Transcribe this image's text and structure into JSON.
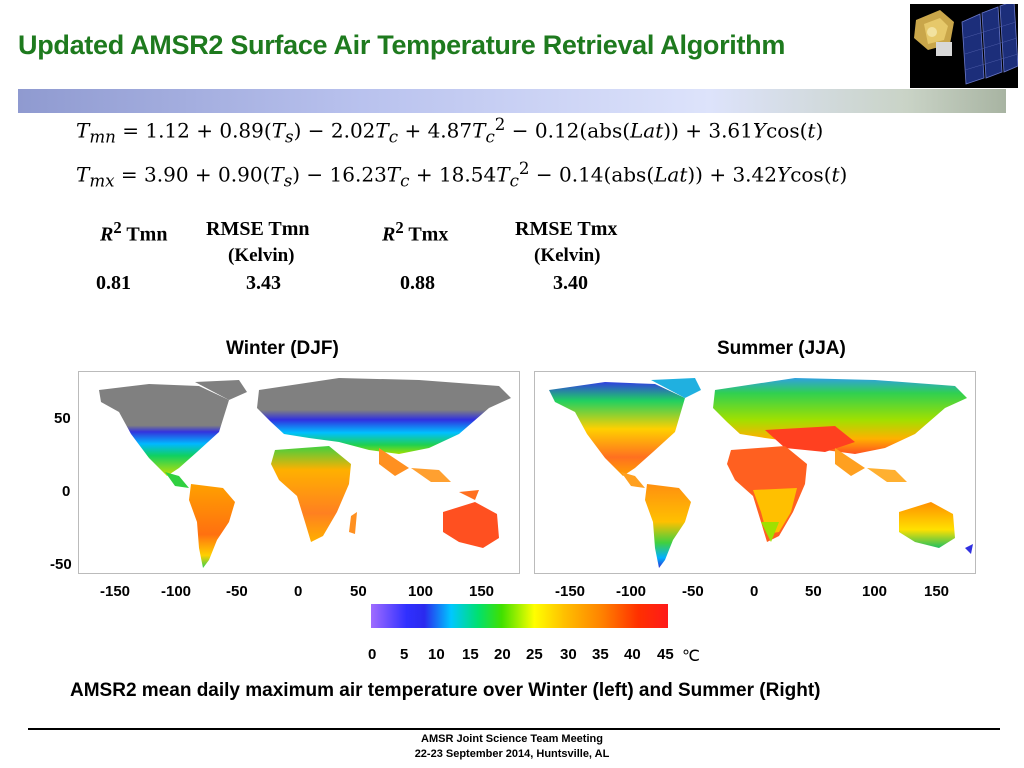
{
  "title": "Updated AMSR2 Surface Air Temperature  Retrieval Algorithm",
  "equations": {
    "tmn": {
      "lhs": "T",
      "lhs_sub": "mn",
      "rhs_a": " = 1.12 + 0.89(",
      "ts": "T",
      "ts_sub": "s",
      "rhs_b": ") − 2.02",
      "tc1": "T",
      "tc1_sub": "c",
      "rhs_c": " + 4.87",
      "tc2": "T",
      "tc2_sub": "c",
      "tc2_sup": "2",
      "rhs_d": " − 0.12(abs(",
      "lat": "Lat",
      "rhs_e": ")) + 3.61",
      "y": "Y",
      "rhs_f": "cos(",
      "t": "t",
      "rhs_g": ")"
    },
    "tmx": {
      "lhs": "T",
      "lhs_sub": "mx",
      "rhs_a": " = 3.90 + 0.90(",
      "ts": "T",
      "ts_sub": "s",
      "rhs_b": ") − 16.23",
      "tc1": "T",
      "tc1_sub": "c",
      "rhs_c": " + 18.54",
      "tc2": "T",
      "tc2_sub": "c",
      "tc2_sup": "2",
      "rhs_d": " − 0.14(abs(",
      "lat": "Lat",
      "rhs_e": ")) + 3.42",
      "y": "Y",
      "rhs_f": "cos(",
      "t": "t",
      "rhs_g": ")"
    }
  },
  "stats": {
    "r2_symbol": "R",
    "r2_sup": "2",
    "col1_label": "Tmn",
    "col2_label": "RMSE Tmn",
    "col2_unit": "(Kelvin)",
    "col3_label": "Tmx",
    "col4_label": "RMSE Tmx",
    "col4_unit": "(Kelvin)",
    "r2_tmn": "0.81",
    "rmse_tmn": "3.43",
    "r2_tmx": "0.88",
    "rmse_tmx": "3.40"
  },
  "maps": {
    "winter_label": "Winter (DJF)",
    "summer_label": "Summer (JJA)",
    "y_ticks": [
      "50",
      "0",
      "-50"
    ],
    "x_ticks": [
      "-150",
      "-100",
      "-50",
      "0",
      "50",
      "100",
      "150"
    ]
  },
  "colorbar": {
    "ticks": [
      "0",
      "5",
      "10",
      "15",
      "20",
      "25",
      "30",
      "35",
      "40",
      "45"
    ],
    "unit": "℃"
  },
  "caption": "AMSR2 mean daily maximum air temperature over  Winter (left) and Summer (Right)",
  "footer": {
    "line1": "AMSR Joint Science Team Meeting",
    "line2": "22-23 September 2014, Huntsville, AL"
  }
}
